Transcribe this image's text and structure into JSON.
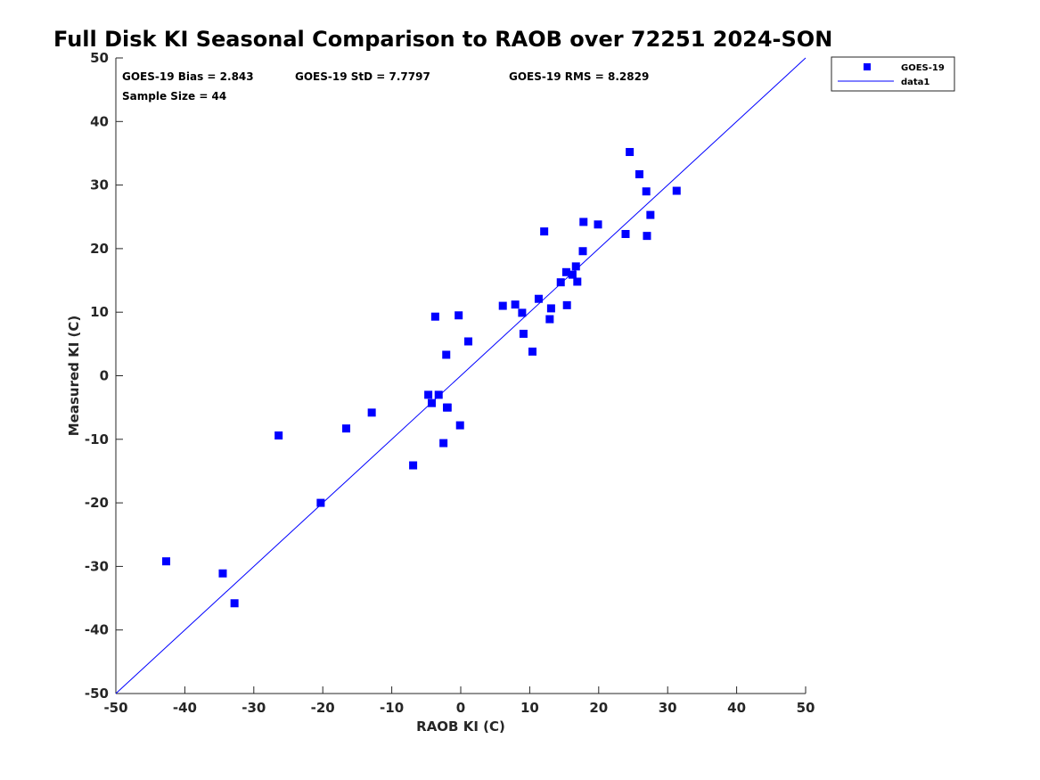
{
  "chart_data": {
    "type": "scatter",
    "title": "Full Disk KI Seasonal Comparison to RAOB over 72251 2024-SON",
    "xlabel": "RAOB KI (C)",
    "ylabel": "Measured KI (C)",
    "xlim": [
      -50,
      50
    ],
    "ylim": [
      -50,
      50
    ],
    "xticks": [
      "-50",
      "-40",
      "-30",
      "-20",
      "-10",
      "0",
      "10",
      "20",
      "30",
      "40",
      "50"
    ],
    "yticks": [
      "50",
      "40",
      "30",
      "20",
      "10",
      "0",
      "-10",
      "-20",
      "-30",
      "-40",
      "-50"
    ],
    "stats": {
      "bias": "GOES-19 Bias = 2.843",
      "std": "GOES-19 StD = 7.7797",
      "rms": "GOES-19 RMS = 8.2829",
      "sample": "Sample Size = 44"
    },
    "legend": {
      "location": "top-right-outside",
      "entries": [
        "GOES-19",
        "data1"
      ]
    },
    "colors": {
      "marker": "#0000ff",
      "line": "#0000ff"
    },
    "series": [
      {
        "name": "GOES-19",
        "x": [
          -42.7,
          -34.5,
          -32.8,
          -26.4,
          -20.3,
          -16.6,
          -12.9,
          -6.9,
          -4.7,
          -4.2,
          -3.7,
          -2.5,
          -2.1,
          -2.0,
          -0.3,
          -0.1,
          1.1,
          6.1,
          7.9,
          8.9,
          9.1,
          10.4,
          11.3,
          12.1,
          12.9,
          13.1,
          14.5,
          15.3,
          15.4,
          16.2,
          16.7,
          16.9,
          17.7,
          17.8,
          19.9,
          23.9,
          24.5,
          25.9,
          26.9,
          27.0,
          27.5,
          31.3,
          -3.2,
          -1.9
        ],
        "y": [
          -29.2,
          -31.1,
          -35.8,
          -9.4,
          -20.0,
          -8.3,
          -5.8,
          -14.1,
          -3.0,
          -4.3,
          9.3,
          -10.6,
          3.3,
          -5.0,
          9.5,
          -7.8,
          5.4,
          11.0,
          11.2,
          9.9,
          6.6,
          3.8,
          12.1,
          22.7,
          8.9,
          10.6,
          14.7,
          16.3,
          11.1,
          15.9,
          17.2,
          14.8,
          19.6,
          24.2,
          23.8,
          22.3,
          35.2,
          31.7,
          29.0,
          22.0,
          25.3,
          29.1,
          -3.0,
          -5.0
        ]
      },
      {
        "name": "data1",
        "type": "line",
        "x": [
          -50,
          50
        ],
        "y": [
          -50,
          50
        ]
      }
    ]
  }
}
